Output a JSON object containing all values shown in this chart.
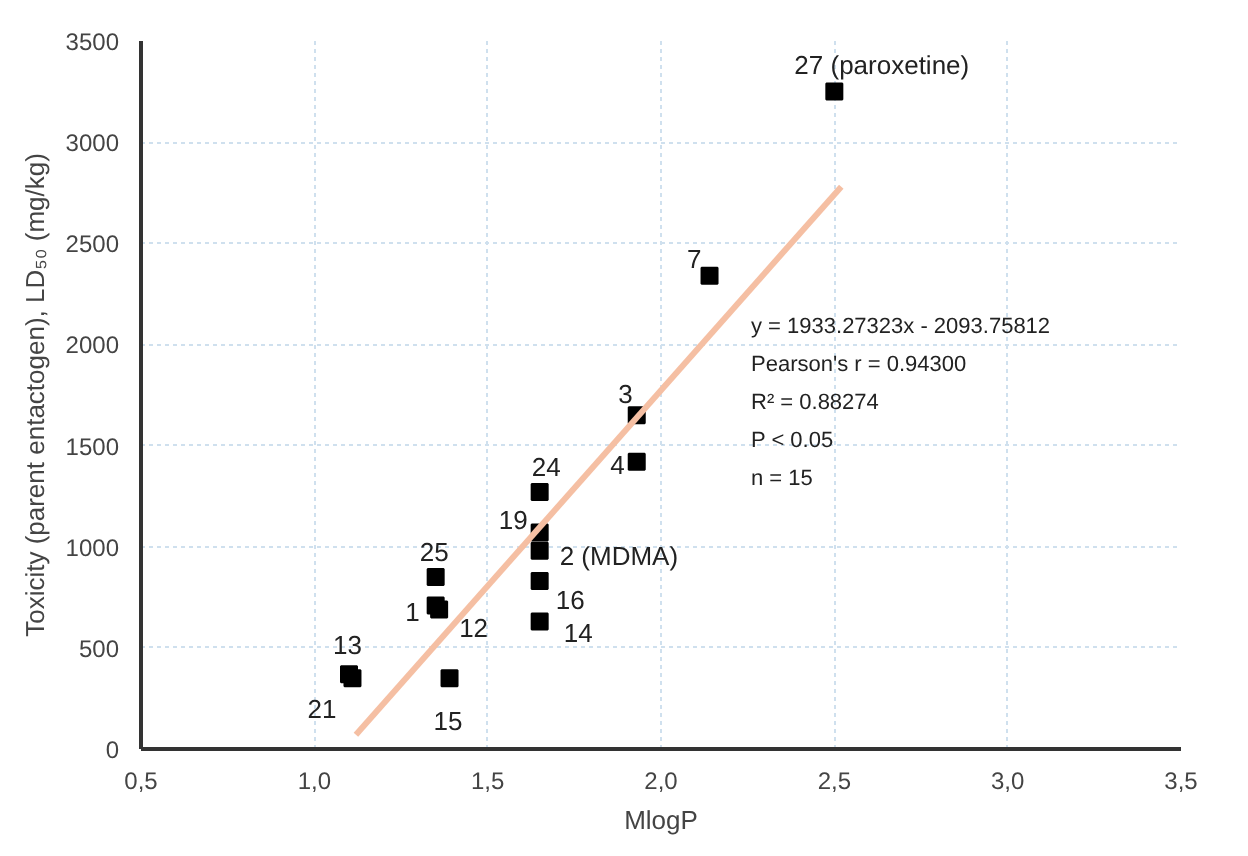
{
  "chart_data": {
    "type": "scatter",
    "xlabel": "MlogP",
    "ylabel": "Toxicity (parent entactogen), LD₅₀ (mg/kg)",
    "series": [
      {
        "color": "#000000",
        "marker": "square",
        "x": [
          2.5,
          2.14,
          1.93,
          1.93,
          1.65,
          1.65,
          1.65,
          1.65,
          1.65,
          1.35,
          1.35,
          1.36,
          1.1,
          1.11,
          1.39
        ],
        "values": [
          3250,
          2340,
          1650,
          1420,
          1270,
          1070,
          980,
          830,
          630,
          850,
          710,
          690,
          370,
          350,
          350
        ]
      },
      {
        "type": "line",
        "color": "#f5bfa3",
        "x": [
          1.12,
          2.52
        ],
        "values": [
          70,
          2780
        ]
      }
    ],
    "annotations": [
      {
        "text": "27 (paroxetine)",
        "x": 2.5,
        "y": 3250
      },
      {
        "text": "7",
        "x": 2.14,
        "y": 2340
      },
      {
        "text": "3",
        "x": 1.93,
        "y": 1650
      },
      {
        "text": "4",
        "x": 1.93,
        "y": 1420
      },
      {
        "text": "24",
        "x": 1.65,
        "y": 1270
      },
      {
        "text": "19",
        "x": 1.65,
        "y": 1070
      },
      {
        "text": "2 (MDMA)",
        "x": 1.65,
        "y": 980
      },
      {
        "text": "16",
        "x": 1.65,
        "y": 830
      },
      {
        "text": "14",
        "x": 1.65,
        "y": 630
      },
      {
        "text": "25",
        "x": 1.35,
        "y": 850
      },
      {
        "text": "1",
        "x": 1.35,
        "y": 710
      },
      {
        "text": "12",
        "x": 1.36,
        "y": 690
      },
      {
        "text": "13",
        "x": 1.1,
        "y": 370
      },
      {
        "text": "21",
        "x": 1.11,
        "y": 350
      },
      {
        "text": "15",
        "x": 1.39,
        "y": 350
      },
      "y = 1933.27323x - 2093.75812",
      "Pearson's r = 0.94300",
      "R² = 0.88274",
      "P < 0.05",
      "n = 15"
    ],
    "xlim": [
      0.5,
      3.5
    ],
    "ylim": [
      0,
      3500
    ],
    "xticks": [
      {
        "value": 0.5,
        "label": "0,5"
      },
      {
        "value": 1.0,
        "label": "1,0"
      },
      {
        "value": 1.5,
        "label": "1,5"
      },
      {
        "value": 2.0,
        "label": "2,0"
      },
      {
        "value": 2.5,
        "label": "2,5"
      },
      {
        "value": 3.0,
        "label": "3,0"
      },
      {
        "value": 3.5,
        "label": "3,5"
      }
    ],
    "yticks": [
      0,
      500,
      1000,
      1500,
      2000,
      2500,
      3000,
      3500
    ],
    "grid": true
  }
}
